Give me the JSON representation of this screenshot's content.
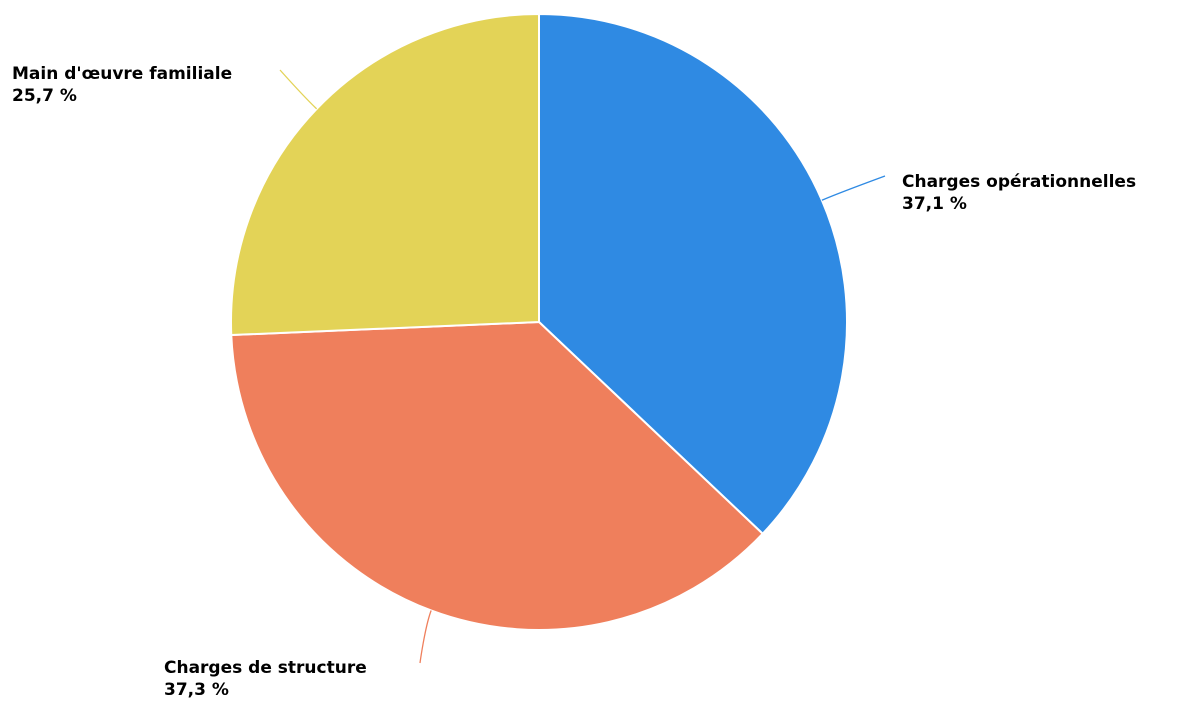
{
  "chart_data": {
    "type": "pie",
    "title": "",
    "slices": [
      {
        "label": "Charges opérationnelles",
        "value": 37.1,
        "value_label": "37,1 %",
        "color": "#2f8ae3"
      },
      {
        "label": "Charges de structure",
        "value": 37.3,
        "value_label": "37,3 %",
        "color": "#ef7f5c"
      },
      {
        "label": "Main d'œuvre familiale",
        "value": 25.7,
        "value_label": "25,7 %",
        "color": "#e3d357"
      }
    ]
  }
}
